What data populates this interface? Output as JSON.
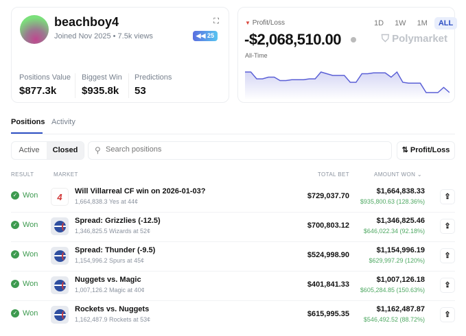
{
  "profile": {
    "username": "beachboy4",
    "joined": "Joined Nov 2025",
    "views": "7.5k views",
    "badge": "25",
    "stats": [
      {
        "label": "Positions Value",
        "value": "$877.3k"
      },
      {
        "label": "Biggest Win",
        "value": "$935.8k"
      },
      {
        "label": "Predictions",
        "value": "53"
      }
    ]
  },
  "pnl": {
    "label": "Profit/Loss",
    "value": "-$2,068,510.00",
    "period_label": "All-Time",
    "brand": "Polymarket",
    "ranges": [
      "1D",
      "1W",
      "1M",
      "ALL"
    ],
    "selected_range": "ALL",
    "accent": "#5a5fd6"
  },
  "chart_data": {
    "type": "area",
    "series": [
      {
        "values": [
          10,
          10,
          6,
          6,
          7,
          7,
          5,
          5,
          5.5,
          5.5,
          5.5,
          6,
          6,
          10,
          9,
          8,
          8,
          8,
          4,
          4,
          9,
          9,
          9.5,
          9.5,
          9.5,
          7,
          10,
          4,
          3.5,
          3.5,
          3.5,
          -2,
          -2,
          -2,
          1,
          -2
        ]
      }
    ]
  },
  "tabs": [
    {
      "label": "Positions",
      "active": true
    },
    {
      "label": "Activity",
      "active": false
    }
  ],
  "filters": {
    "active": "Active",
    "closed": "Closed",
    "search_placeholder": "Search positions",
    "sort": "Profit/Loss"
  },
  "table": {
    "headers": {
      "result": "RESULT",
      "market": "MARKET",
      "total_bet": "TOTAL BET",
      "amount_won": "AMOUNT WON"
    },
    "rows": [
      {
        "result": "Won",
        "title": "Will Villarreal CF win on 2026-01-03?",
        "sub": "1,664,838.3 Yes at 44¢",
        "icon": "laliga",
        "bet": "$729,037.70",
        "won": "$1,664,838.33",
        "gain": "$935,800.63 (128.36%)"
      },
      {
        "result": "Won",
        "title": "Spread: Grizzlies (-12.5)",
        "sub": "1,346,825.5 Wizards at 52¢",
        "icon": "nba",
        "bet": "$700,803.12",
        "won": "$1,346,825.46",
        "gain": "$646,022.34 (92.18%)"
      },
      {
        "result": "Won",
        "title": "Spread: Thunder (-9.5)",
        "sub": "1,154,996.2 Spurs at 45¢",
        "icon": "nba",
        "bet": "$524,998.90",
        "won": "$1,154,996.19",
        "gain": "$629,997.29 (120%)"
      },
      {
        "result": "Won",
        "title": "Nuggets vs. Magic",
        "sub": "1,007,126.2 Magic at 40¢",
        "icon": "nba",
        "bet": "$401,841.33",
        "won": "$1,007,126.18",
        "gain": "$605,284.85 (150.63%)"
      },
      {
        "result": "Won",
        "title": "Rockets vs. Nuggets",
        "sub": "1,162,487.9 Rockets at 53¢",
        "icon": "nba",
        "bet": "$615,995.35",
        "won": "$1,162,487.87",
        "gain": "$546,492.52 (88.72%)"
      }
    ]
  }
}
